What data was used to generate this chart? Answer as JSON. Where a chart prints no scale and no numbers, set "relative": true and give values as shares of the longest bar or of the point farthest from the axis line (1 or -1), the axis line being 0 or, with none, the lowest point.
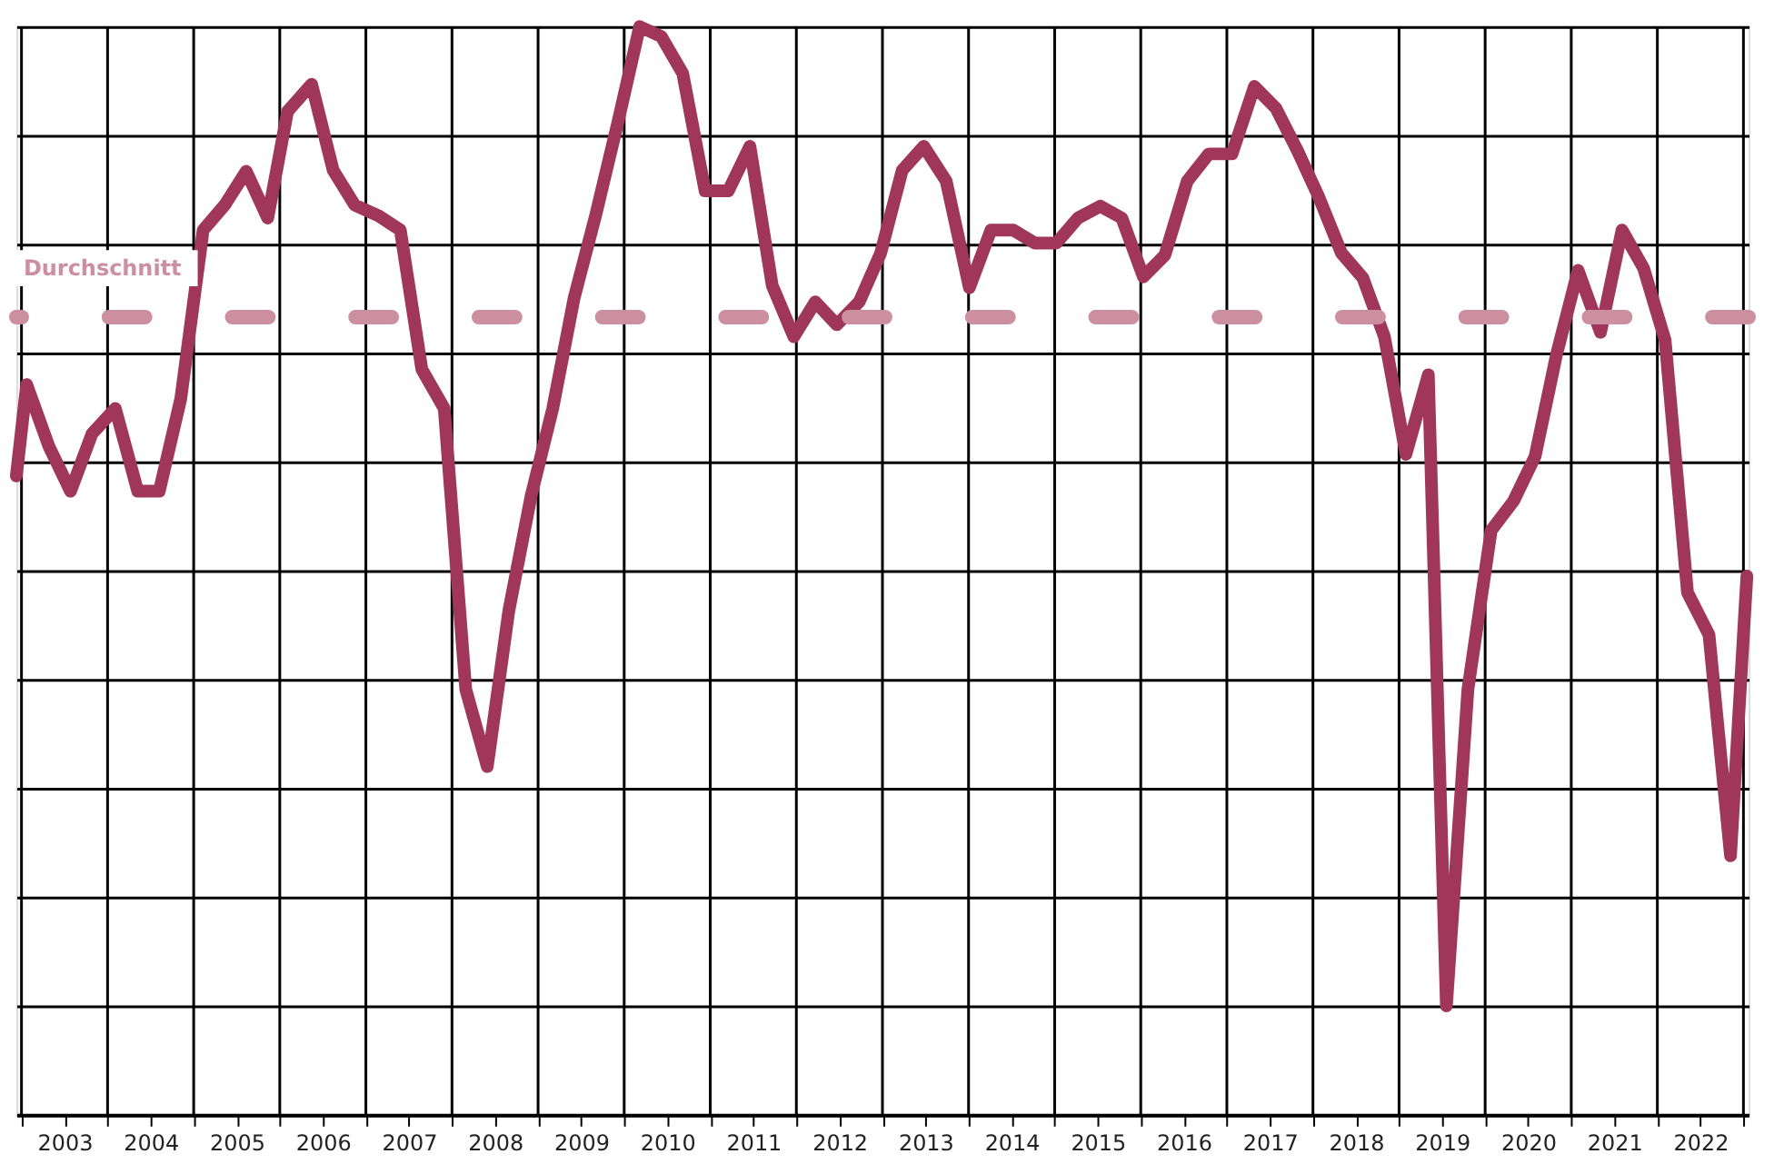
{
  "chart_data": {
    "type": "line",
    "relative": true,
    "grid": true,
    "legend": false,
    "marker": "none",
    "line_style": "solid",
    "x": [
      2002.94,
      2003.06,
      2003.32,
      2003.57,
      2003.82,
      2004.09,
      2004.35,
      2004.6,
      2004.85,
      2005.11,
      2005.36,
      2005.61,
      2005.86,
      2006.09,
      2006.37,
      2006.62,
      2006.87,
      2007.15,
      2007.4,
      2007.65,
      2007.91,
      2008.16,
      2008.41,
      2008.66,
      2008.92,
      2009.17,
      2009.42,
      2009.67,
      2009.93,
      2010.18,
      2010.43,
      2010.68,
      2010.94,
      2011.21,
      2011.46,
      2011.72,
      2011.97,
      2012.22,
      2012.47,
      2012.73,
      2012.98,
      2013.23,
      2013.48,
      2013.74,
      2014.01,
      2014.26,
      2014.52,
      2014.77,
      2015.02,
      2015.27,
      2015.53,
      2015.78,
      2016.03,
      2016.28,
      2016.54,
      2016.79,
      2017.06,
      2017.32,
      2017.57,
      2017.82,
      2018.07,
      2018.33,
      2018.58,
      2018.83,
      2019.08,
      2019.34,
      2019.55,
      2019.8,
      2020.07,
      2020.33,
      2020.58,
      2020.83,
      2021.08,
      2021.34,
      2021.59,
      2021.84,
      2022.09,
      2022.35,
      2022.6,
      2022.85,
      2023.04
    ],
    "series": [
      {
        "color": "#a0365a",
        "values": [
          0.587,
          0.671,
          0.614,
          0.573,
          0.626,
          0.649,
          0.573,
          0.573,
          0.658,
          0.813,
          0.836,
          0.867,
          0.824,
          0.922,
          0.947,
          0.868,
          0.836,
          0.826,
          0.813,
          0.685,
          0.649,
          0.391,
          0.32,
          0.463,
          0.569,
          0.649,
          0.751,
          0.827,
          0.913,
          1,
          0.991,
          0.957,
          0.849,
          0.849,
          0.89,
          0.762,
          0.715,
          0.747,
          0.726,
          0.747,
          0.792,
          0.868,
          0.89,
          0.858,
          0.76,
          0.813,
          0.813,
          0.801,
          0.801,
          0.824,
          0.835,
          0.824,
          0.77,
          0.79,
          0.858,
          0.883,
          0.883,
          0.945,
          0.925,
          0.886,
          0.843,
          0.792,
          0.769,
          0.715,
          0.607,
          0.68,
          0.1,
          0.391,
          0.537,
          0.564,
          0.605,
          0.699,
          0.776,
          0.719,
          0.813,
          0.778,
          0.712,
          0.48,
          0.441,
          0.238,
          0.495
        ]
      }
    ],
    "ref_lines": [
      {
        "axis": "y",
        "value": 0.733,
        "label": "Durchschnitt",
        "color": "#cc8fa0",
        "line_style": "dashed"
      }
    ],
    "xlim": [
      2002.94,
      2023.06
    ],
    "xticks": [
      {
        "value": 2003,
        "label": null
      },
      {
        "value": 2003.5,
        "label": "2003"
      },
      {
        "value": 2004,
        "label": null
      },
      {
        "value": 2004.5,
        "label": "2004"
      },
      {
        "value": 2005,
        "label": null
      },
      {
        "value": 2005.5,
        "label": "2005"
      },
      {
        "value": 2006,
        "label": null
      },
      {
        "value": 2006.5,
        "label": "2006"
      },
      {
        "value": 2007,
        "label": null
      },
      {
        "value": 2007.5,
        "label": "2007"
      },
      {
        "value": 2008,
        "label": null
      },
      {
        "value": 2008.5,
        "label": "2008"
      },
      {
        "value": 2009,
        "label": null
      },
      {
        "value": 2009.5,
        "label": "2009"
      },
      {
        "value": 2010,
        "label": null
      },
      {
        "value": 2010.5,
        "label": "2010"
      },
      {
        "value": 2011,
        "label": null
      },
      {
        "value": 2011.5,
        "label": "2011"
      },
      {
        "value": 2012,
        "label": null
      },
      {
        "value": 2012.5,
        "label": "2012"
      },
      {
        "value": 2013,
        "label": null
      },
      {
        "value": 2013.5,
        "label": "2013"
      },
      {
        "value": 2014,
        "label": null
      },
      {
        "value": 2014.5,
        "label": "2014"
      },
      {
        "value": 2015,
        "label": null
      },
      {
        "value": 2015.5,
        "label": "2015"
      },
      {
        "value": 2016,
        "label": null
      },
      {
        "value": 2016.5,
        "label": "2016"
      },
      {
        "value": 2017,
        "label": null
      },
      {
        "value": 2017.5,
        "label": "2017"
      },
      {
        "value": 2018,
        "label": null
      },
      {
        "value": 2018.5,
        "label": "2018"
      },
      {
        "value": 2019,
        "label": null
      },
      {
        "value": 2019.5,
        "label": "2019"
      },
      {
        "value": 2020,
        "label": null
      },
      {
        "value": 2020.5,
        "label": "2020"
      },
      {
        "value": 2021,
        "label": null
      },
      {
        "value": 2021.5,
        "label": "2021"
      },
      {
        "value": 2022,
        "label": null
      },
      {
        "value": 2022.5,
        "label": "2022"
      },
      {
        "value": 2023,
        "label": null
      }
    ]
  }
}
